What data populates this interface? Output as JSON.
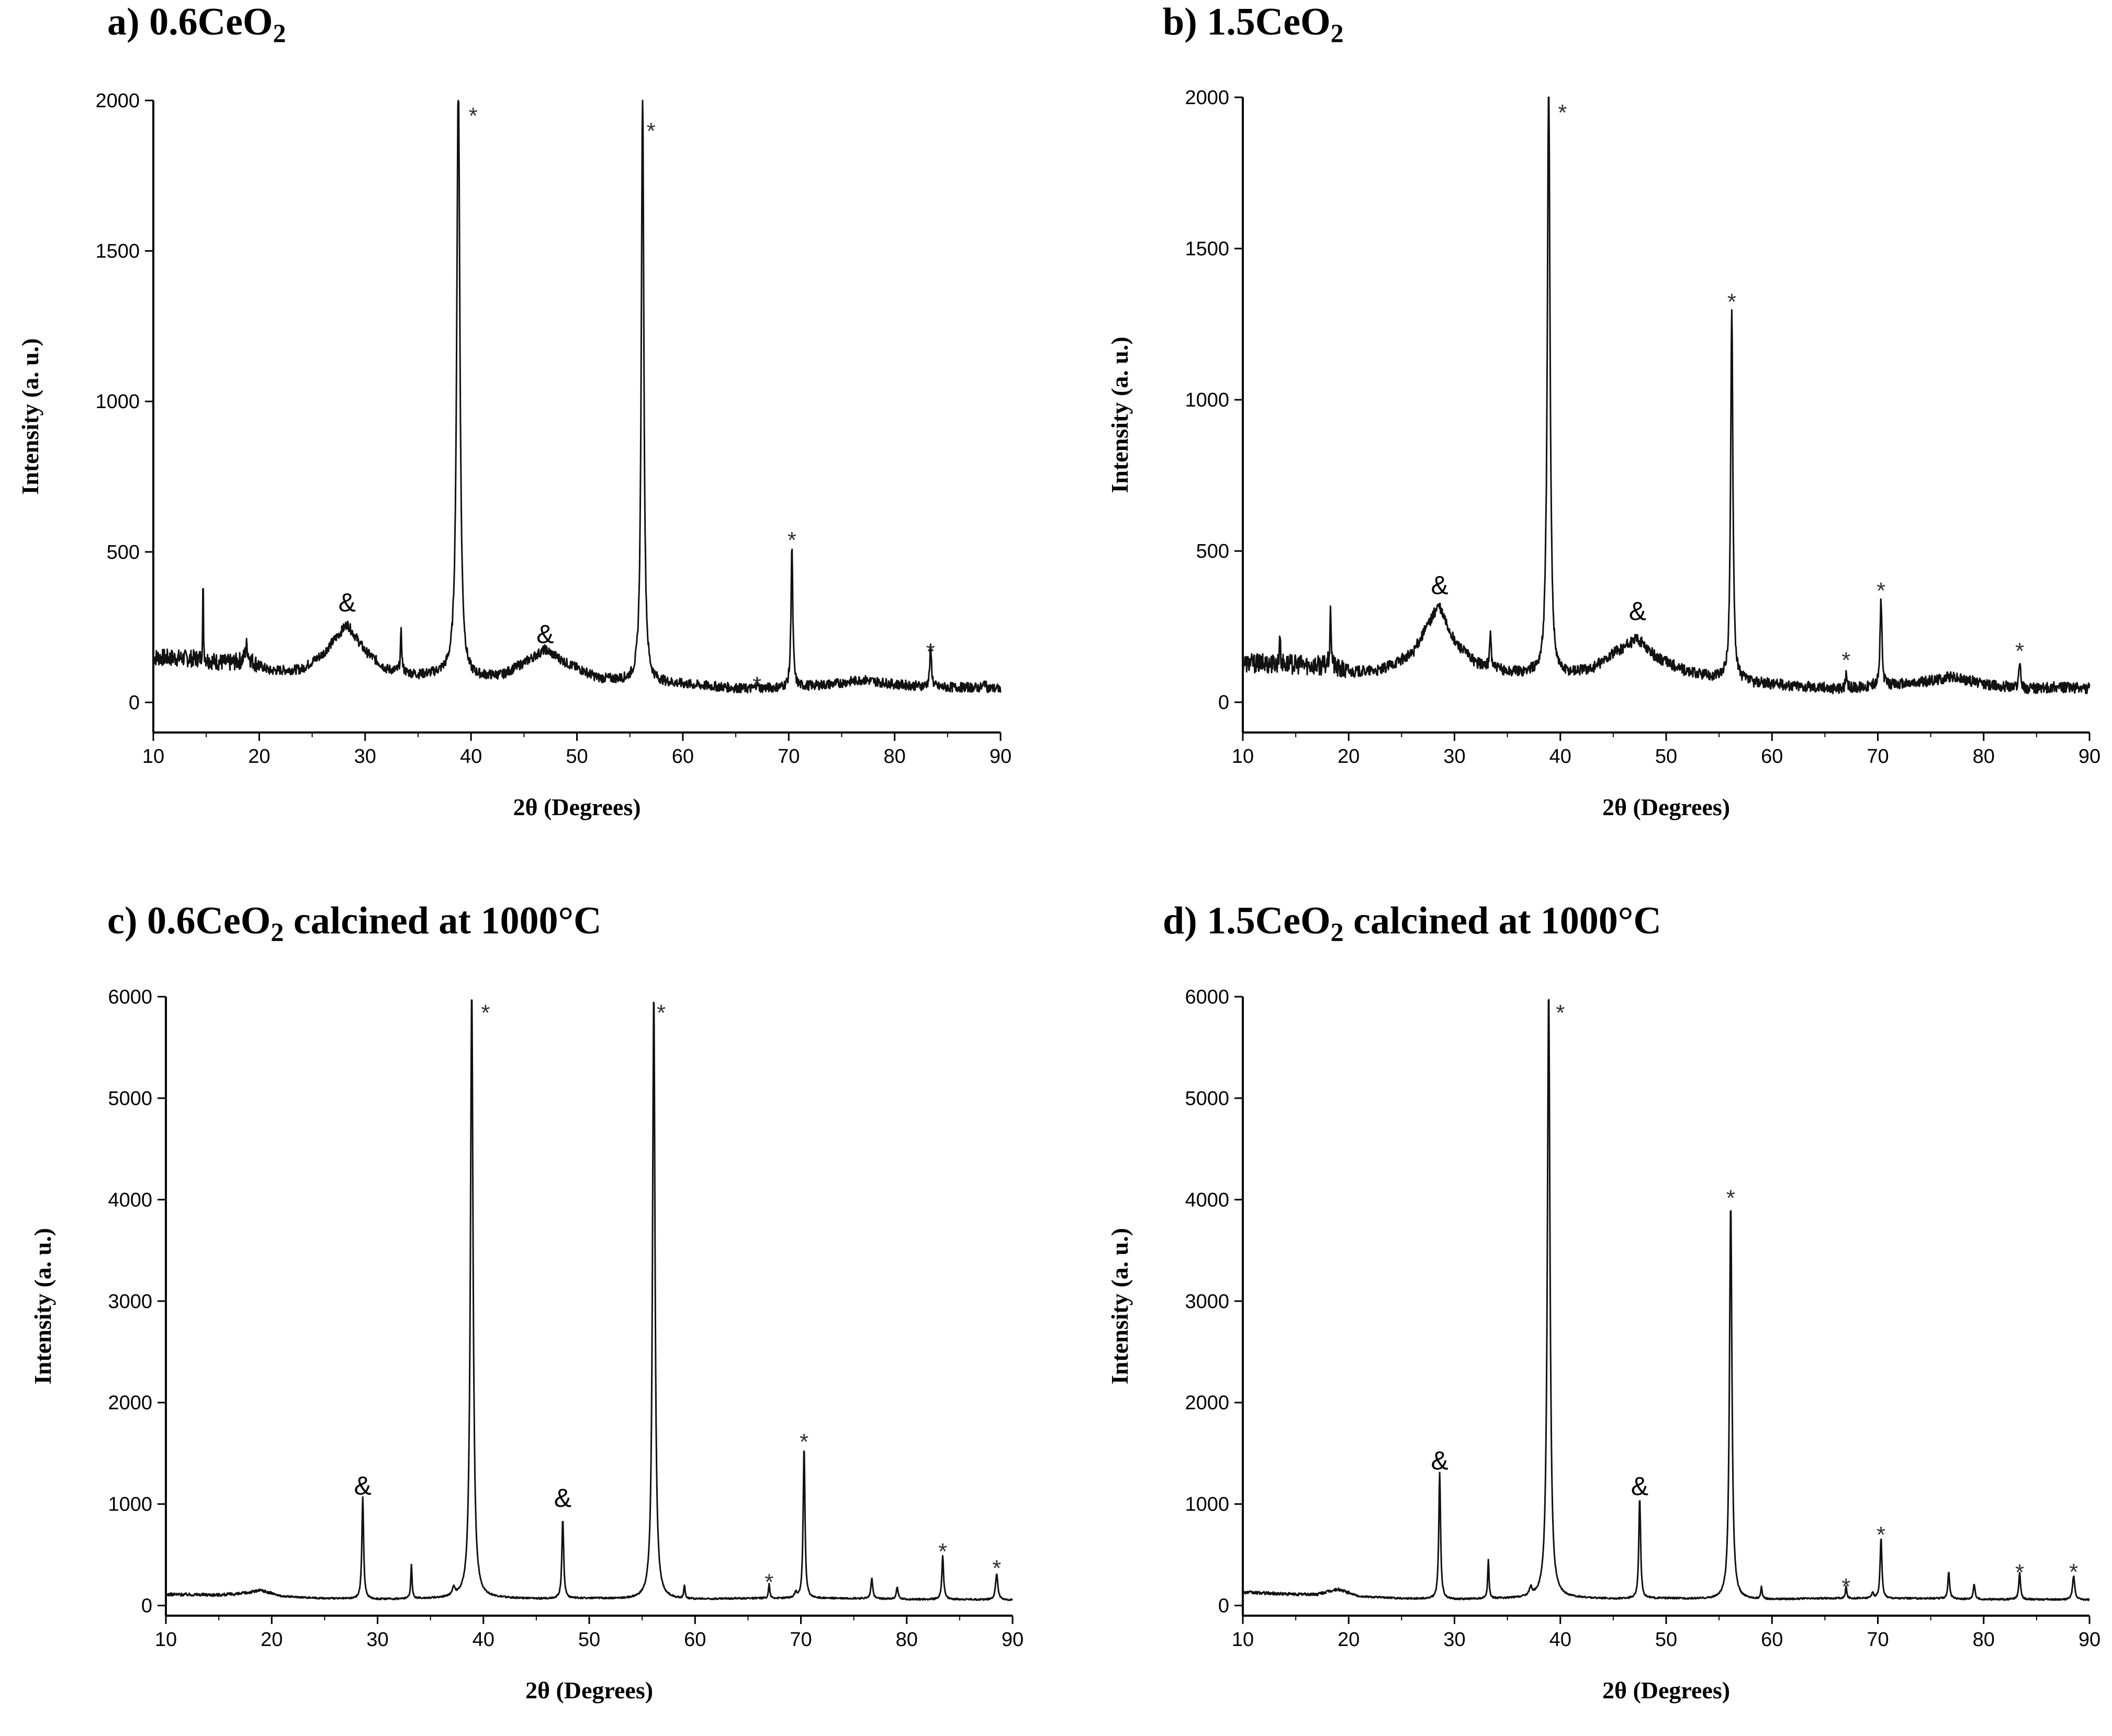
{
  "figure": {
    "panels": [
      {
        "id": "a",
        "title_prefix": "a) 0.6CeO",
        "title_sub": "2",
        "title_suffix": "",
        "chart_data": {
          "type": "line",
          "xlabel": "2θ (Degrees)",
          "ylabel": "Intensity (a. u.)",
          "xlim": [
            10,
            90
          ],
          "ylim": [
            -100,
            2000
          ],
          "xticks": [
            10,
            20,
            30,
            40,
            50,
            60,
            70,
            80,
            90
          ],
          "yticks": [
            0,
            500,
            1000,
            1500,
            2000
          ],
          "baseline": [
            [
              10,
              150
            ],
            [
              14,
              145
            ],
            [
              17,
              130
            ],
            [
              19,
              140
            ],
            [
              21,
              105
            ],
            [
              24,
              110
            ],
            [
              26,
              160
            ],
            [
              28.3,
              260
            ],
            [
              30,
              170
            ],
            [
              32,
              110
            ],
            [
              35,
              90
            ],
            [
              38,
              95
            ],
            [
              40,
              80
            ],
            [
              43,
              90
            ],
            [
              45,
              130
            ],
            [
              47,
              175
            ],
            [
              49,
              130
            ],
            [
              52,
              80
            ],
            [
              55,
              70
            ],
            [
              58,
              65
            ],
            [
              62,
              55
            ],
            [
              66,
              45
            ],
            [
              70,
              50
            ],
            [
              74,
              60
            ],
            [
              77,
              75
            ],
            [
              80,
              60
            ],
            [
              84,
              50
            ],
            [
              87,
              50
            ],
            [
              90,
              45
            ]
          ],
          "peaks": [
            [
              14.7,
              270,
              0.08
            ],
            [
              18.8,
              50,
              0.3
            ],
            [
              33.4,
              130,
              0.15
            ],
            [
              38.8,
              2000,
              0.35
            ],
            [
              56.2,
              2000,
              0.28
            ],
            [
              67.0,
              25,
              0.15
            ],
            [
              70.3,
              470,
              0.2
            ],
            [
              83.4,
              130,
              0.2
            ],
            [
              88.5,
              20,
              0.2
            ]
          ],
          "noise": 16,
          "annotations": [
            {
              "symbol": "&",
              "x": 28.3,
              "y": 330
            },
            {
              "symbol": "&",
              "x": 47.0,
              "y": 225
            },
            {
              "symbol": "*",
              "x": 40.2,
              "y": 1965
            },
            {
              "symbol": "*",
              "x": 57.0,
              "y": 1915
            },
            {
              "symbol": "*",
              "x": 67.0,
              "y": 75
            },
            {
              "symbol": "*",
              "x": 70.3,
              "y": 555
            },
            {
              "symbol": "*",
              "x": 83.4,
              "y": 185
            }
          ]
        }
      },
      {
        "id": "b",
        "title_prefix": "b) 1.5CeO",
        "title_sub": "2",
        "title_suffix": "",
        "chart_data": {
          "type": "line",
          "xlabel": "2θ (Degrees)",
          "ylabel": "Intensity (a. u.)",
          "xlim": [
            10,
            90
          ],
          "ylim": [
            -100,
            2000
          ],
          "xticks": [
            10,
            20,
            30,
            40,
            50,
            60,
            70,
            80,
            90
          ],
          "yticks": [
            0,
            500,
            1000,
            1500,
            2000
          ],
          "baseline": [
            [
              10,
              130
            ],
            [
              15,
              125
            ],
            [
              18,
              120
            ],
            [
              20,
              100
            ],
            [
              23,
              105
            ],
            [
              26,
              160
            ],
            [
              28.5,
              320
            ],
            [
              30,
              200
            ],
            [
              32,
              130
            ],
            [
              35,
              100
            ],
            [
              38,
              95
            ],
            [
              40,
              90
            ],
            [
              43,
              110
            ],
            [
              45,
              160
            ],
            [
              47.3,
              210
            ],
            [
              49,
              150
            ],
            [
              52,
              100
            ],
            [
              55,
              80
            ],
            [
              58,
              65
            ],
            [
              62,
              55
            ],
            [
              66,
              45
            ],
            [
              70,
              55
            ],
            [
              74,
              65
            ],
            [
              77,
              85
            ],
            [
              80,
              60
            ],
            [
              84,
              45
            ],
            [
              87,
              50
            ],
            [
              90,
              45
            ]
          ],
          "peaks": [
            [
              13.5,
              120,
              0.1
            ],
            [
              18.3,
              180,
              0.15
            ],
            [
              33.4,
              120,
              0.15
            ],
            [
              38.9,
              2000,
              0.3
            ],
            [
              56.2,
              1230,
              0.25
            ],
            [
              67.0,
              40,
              0.15
            ],
            [
              70.3,
              290,
              0.2
            ],
            [
              83.4,
              90,
              0.2
            ]
          ],
          "noise": 18,
          "annotations": [
            {
              "symbol": "&",
              "x": 28.6,
              "y": 385
            },
            {
              "symbol": "&",
              "x": 47.3,
              "y": 300
            },
            {
              "symbol": "*",
              "x": 40.2,
              "y": 1965
            },
            {
              "symbol": "*",
              "x": 56.2,
              "y": 1340
            },
            {
              "symbol": "*",
              "x": 67.0,
              "y": 155
            },
            {
              "symbol": "*",
              "x": 70.3,
              "y": 385
            },
            {
              "symbol": "*",
              "x": 83.4,
              "y": 185
            }
          ]
        }
      },
      {
        "id": "c",
        "title_prefix": "c) 0.6CeO",
        "title_sub": "2",
        "title_suffix": " calcined at 1000°C",
        "chart_data": {
          "type": "line",
          "xlabel": "2θ (Degrees)",
          "ylabel": "Intensity (a. u.)",
          "xlim": [
            10,
            90
          ],
          "ylim": [
            -100,
            6000
          ],
          "xticks": [
            10,
            20,
            30,
            40,
            50,
            60,
            70,
            80,
            90
          ],
          "yticks": [
            0,
            1000,
            2000,
            3000,
            4000,
            5000,
            6000
          ],
          "baseline": [
            [
              10,
              110
            ],
            [
              15,
              105
            ],
            [
              17,
              115
            ],
            [
              19,
              150
            ],
            [
              21,
              90
            ],
            [
              25,
              70
            ],
            [
              30,
              60
            ],
            [
              36,
              70
            ],
            [
              40,
              75
            ],
            [
              45,
              65
            ],
            [
              50,
              70
            ],
            [
              55,
              60
            ],
            [
              60,
              60
            ],
            [
              65,
              70
            ],
            [
              70,
              70
            ],
            [
              75,
              70
            ],
            [
              80,
              60
            ],
            [
              85,
              60
            ],
            [
              90,
              55
            ]
          ],
          "peaks": [
            [
              28.6,
              1000,
              0.2
            ],
            [
              33.2,
              330,
              0.15
            ],
            [
              37.2,
              80,
              0.3
            ],
            [
              38.9,
              6000,
              0.3
            ],
            [
              47.5,
              790,
              0.2
            ],
            [
              56.1,
              6000,
              0.28
            ],
            [
              59.0,
              130,
              0.15
            ],
            [
              67.0,
              140,
              0.15
            ],
            [
              69.5,
              60,
              0.2
            ],
            [
              70.3,
              1500,
              0.2
            ],
            [
              76.7,
              210,
              0.2
            ],
            [
              79.1,
              120,
              0.2
            ],
            [
              83.4,
              430,
              0.2
            ],
            [
              88.5,
              260,
              0.25
            ]
          ],
          "noise": 8,
          "annotations": [
            {
              "symbol": "&",
              "x": 28.6,
              "y": 1175
            },
            {
              "symbol": "&",
              "x": 47.5,
              "y": 1055
            },
            {
              "symbol": "*",
              "x": 40.2,
              "y": 5890
            },
            {
              "symbol": "*",
              "x": 56.8,
              "y": 5890
            },
            {
              "symbol": "*",
              "x": 67.0,
              "y": 280
            },
            {
              "symbol": "*",
              "x": 70.3,
              "y": 1660
            },
            {
              "symbol": "*",
              "x": 83.4,
              "y": 580
            },
            {
              "symbol": "*",
              "x": 88.5,
              "y": 415
            }
          ]
        }
      },
      {
        "id": "d",
        "title_prefix": "d) 1.5CeO",
        "title_sub": "2",
        "title_suffix": " calcined at 1000°C",
        "chart_data": {
          "type": "line",
          "xlabel": "2θ (Degrees)",
          "ylabel": "Intensity (a. u.)",
          "xlim": [
            10,
            90
          ],
          "ylim": [
            -100,
            6000
          ],
          "xticks": [
            10,
            20,
            30,
            40,
            50,
            60,
            70,
            80,
            90
          ],
          "yticks": [
            0,
            1000,
            2000,
            3000,
            4000,
            5000,
            6000
          ],
          "baseline": [
            [
              10,
              130
            ],
            [
              15,
              110
            ],
            [
              17,
              110
            ],
            [
              19,
              160
            ],
            [
              21,
              90
            ],
            [
              25,
              70
            ],
            [
              30,
              60
            ],
            [
              36,
              70
            ],
            [
              40,
              75
            ],
            [
              45,
              65
            ],
            [
              50,
              70
            ],
            [
              55,
              60
            ],
            [
              60,
              60
            ],
            [
              65,
              70
            ],
            [
              70,
              70
            ],
            [
              75,
              70
            ],
            [
              80,
              60
            ],
            [
              85,
              60
            ],
            [
              90,
              55
            ]
          ],
          "peaks": [
            [
              28.6,
              1250,
              0.2
            ],
            [
              33.2,
              380,
              0.15
            ],
            [
              37.2,
              80,
              0.3
            ],
            [
              38.9,
              6000,
              0.3
            ],
            [
              47.5,
              1000,
              0.2
            ],
            [
              56.1,
              3900,
              0.28
            ],
            [
              59.0,
              120,
              0.15
            ],
            [
              67.0,
              120,
              0.15
            ],
            [
              69.5,
              60,
              0.2
            ],
            [
              70.3,
              600,
              0.2
            ],
            [
              76.7,
              260,
              0.2
            ],
            [
              79.1,
              150,
              0.2
            ],
            [
              83.4,
              260,
              0.2
            ],
            [
              88.5,
              230,
              0.25
            ]
          ],
          "noise": 8,
          "annotations": [
            {
              "symbol": "&",
              "x": 28.6,
              "y": 1425
            },
            {
              "symbol": "&",
              "x": 47.5,
              "y": 1170
            },
            {
              "symbol": "*",
              "x": 40.0,
              "y": 5890
            },
            {
              "symbol": "*",
              "x": 56.1,
              "y": 4065
            },
            {
              "symbol": "*",
              "x": 67.0,
              "y": 235
            },
            {
              "symbol": "*",
              "x": 70.3,
              "y": 745
            },
            {
              "symbol": "*",
              "x": 83.4,
              "y": 375
            },
            {
              "symbol": "*",
              "x": 88.5,
              "y": 380
            }
          ]
        }
      }
    ]
  }
}
